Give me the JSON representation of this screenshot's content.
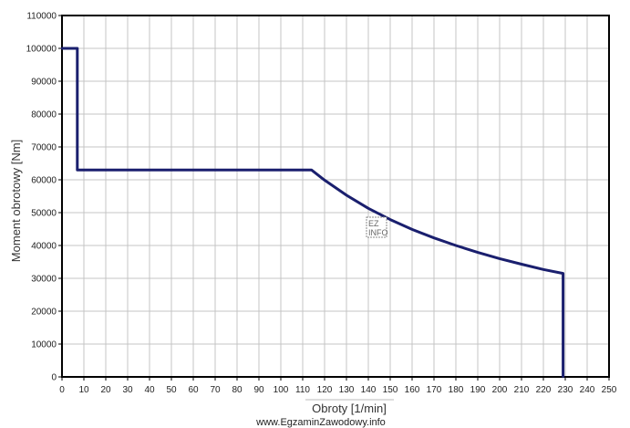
{
  "chart_data": {
    "type": "line",
    "xlabel": "Obroty [1/min]",
    "ylabel": "Moment obrotowy [Nm]",
    "xlim": [
      0,
      250
    ],
    "ylim": [
      0,
      110000
    ],
    "x_ticks": [
      "0",
      "10",
      "20",
      "30",
      "40",
      "50",
      "60",
      "70",
      "80",
      "90",
      "100",
      "110",
      "120",
      "130",
      "140",
      "150",
      "160",
      "170",
      "180",
      "190",
      "200",
      "210",
      "220",
      "230",
      "240",
      "250"
    ],
    "y_ticks": [
      "0",
      "10000",
      "20000",
      "30000",
      "40000",
      "50000",
      "60000",
      "70000",
      "80000",
      "90000",
      "100000",
      "110000"
    ],
    "grid": true,
    "colors": {
      "line": "#1a1f6e",
      "grid": "#c4c4c4",
      "frame": "#000000"
    },
    "series": [
      {
        "x": [
          0,
          7,
          7,
          114,
          120,
          130,
          140,
          150,
          160,
          170,
          180,
          190,
          200,
          210,
          220,
          229,
          229
        ],
        "y": [
          100000,
          100000,
          63000,
          63000,
          59900,
          55300,
          51300,
          47900,
          44900,
          42300,
          40000,
          37900,
          36000,
          34300,
          32700,
          31500,
          0
        ]
      }
    ]
  },
  "watermark": "www.EgzaminZawodowy.info",
  "logo_text": [
    "EZ",
    "INFO"
  ]
}
